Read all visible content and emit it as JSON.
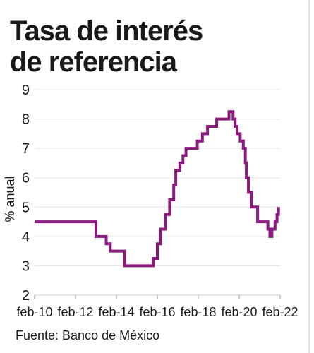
{
  "chart_data": {
    "type": "line",
    "title": "Tasa de interés de referencia",
    "title_lines": [
      "Tasa de interés",
      "de referencia"
    ],
    "ylabel": "% anual",
    "xlabel": "",
    "ylim": [
      2,
      9
    ],
    "yticks": [
      2,
      3,
      4,
      5,
      6,
      7,
      8,
      9
    ],
    "xlim": [
      2010.0,
      2022.0
    ],
    "xticks": [
      {
        "value": 2010,
        "label": "feb-10"
      },
      {
        "value": 2012,
        "label": "feb-12"
      },
      {
        "value": 2014,
        "label": "feb-14"
      },
      {
        "value": 2016,
        "label": "feb-16"
      },
      {
        "value": 2018,
        "label": "feb-18"
      },
      {
        "value": 2020,
        "label": "feb-20"
      },
      {
        "value": 2022,
        "label": "feb-22"
      }
    ],
    "grid": "horizontal",
    "line_color": "#8b1a7e",
    "step": true,
    "series": [
      {
        "x": [
          2010.0,
          2013.0,
          2013.5,
          2013.7,
          2014.4,
          2015.8,
          2016.0,
          2016.15,
          2016.4,
          2016.6,
          2016.8,
          2016.9,
          2017.1,
          2017.25,
          2017.4,
          2017.95,
          2018.2,
          2018.45,
          2018.9,
          2019.5,
          2019.7,
          2019.8,
          2019.9,
          2020.05,
          2020.2,
          2020.3,
          2020.35,
          2020.45,
          2020.6,
          2020.9,
          2021.4,
          2021.5,
          2021.6,
          2021.75,
          2021.85,
          2021.92
        ],
        "y": [
          4.5,
          4.0,
          3.75,
          3.5,
          3.0,
          3.25,
          3.75,
          4.25,
          4.75,
          5.25,
          5.75,
          6.25,
          6.5,
          6.75,
          7.0,
          7.25,
          7.5,
          7.75,
          8.0,
          8.25,
          8.0,
          7.75,
          7.5,
          7.25,
          7.0,
          6.5,
          6.0,
          5.5,
          5.0,
          4.5,
          4.25,
          4.0,
          4.25,
          4.5,
          4.75,
          5.0
        ]
      }
    ]
  },
  "ylabel": "% anual",
  "source": "Fuente: Banco de México"
}
